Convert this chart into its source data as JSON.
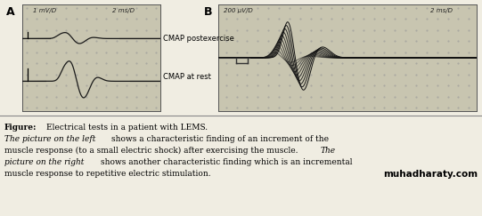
{
  "fig_width": 5.41,
  "fig_height": 2.43,
  "dpi": 100,
  "bg_color": "#f0ede2",
  "panel_bg": "#c8c5b0",
  "label_A": "A",
  "label_B": "B",
  "scale_A": "1 mV/D",
  "scale_B": "200 μV/D",
  "time_scale": "2 ms/D",
  "text_CMAP_rest": "CMAP at rest",
  "text_CMAP_post": "CMAP postexercise",
  "watermark": "muhadharaty.com",
  "line_color": "#1a1a1a",
  "dot_color": "#999999"
}
